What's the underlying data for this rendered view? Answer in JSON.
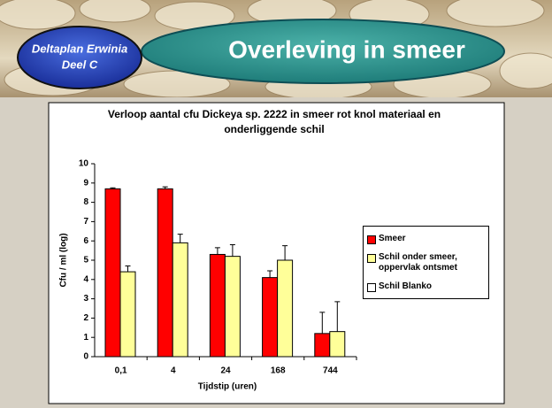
{
  "header": {
    "title": "Overleving in smeer",
    "badge": [
      "Deltaplan Erwinia",
      "Deel C"
    ]
  },
  "chart_data": {
    "type": "bar",
    "title": "Verloop aantal cfu Dickeya sp. 2222 in smeer rot knol materiaal en onderliggende schil",
    "x_label": "Tijdstip (uren)",
    "y_label": "Cfu / ml (log)",
    "categories": [
      "0,1",
      "4",
      "24",
      "168",
      "744"
    ],
    "series": [
      {
        "name": "Smeer",
        "color": "#ff0000",
        "values": [
          8.7,
          8.7,
          5.3,
          4.1,
          1.2
        ],
        "errors": [
          0.05,
          0.1,
          0.35,
          0.35,
          1.1
        ]
      },
      {
        "name": "Schil onder smeer, oppervlak ontsmet",
        "color": "#ffff99",
        "values": [
          4.4,
          5.9,
          5.2,
          5.0,
          1.3
        ],
        "errors": [
          0.3,
          0.45,
          0.6,
          0.75,
          1.55
        ]
      },
      {
        "name": "Schil Blanko",
        "color": "#ffffff",
        "values": [
          null,
          null,
          null,
          null,
          null
        ]
      }
    ],
    "ylim": [
      0,
      10
    ],
    "yticks": [
      0,
      1,
      2,
      3,
      4,
      5,
      6,
      7,
      8,
      9,
      10
    ]
  }
}
